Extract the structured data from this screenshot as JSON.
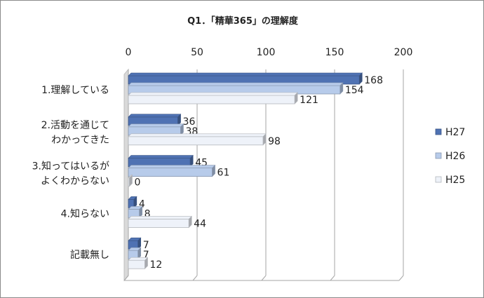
{
  "chart_data": {
    "type": "bar",
    "orientation": "horizontal",
    "title": "Q1．「精華365」の理解度",
    "xlabel": "",
    "ylabel": "",
    "xlim": [
      0,
      200
    ],
    "xticks": [
      "0",
      "50",
      "100",
      "150",
      "200"
    ],
    "categories": [
      [
        "1.理解している"
      ],
      [
        "2.活動を通じて",
        "わかってきた"
      ],
      [
        "3.知ってはいるが",
        "よくわからない"
      ],
      [
        "4.知らない"
      ],
      [
        "記載無し"
      ]
    ],
    "series": [
      {
        "name": "H27",
        "values": [
          168,
          36,
          45,
          4,
          7
        ],
        "color": "#4f72b3"
      },
      {
        "name": "H26",
        "values": [
          154,
          38,
          61,
          8,
          7
        ],
        "color": "#b7cbea"
      },
      {
        "name": "H25",
        "values": [
          121,
          98,
          0,
          44,
          12
        ],
        "color": "#eef2f9"
      }
    ],
    "grid": true,
    "legend": "right",
    "style": "3d"
  }
}
